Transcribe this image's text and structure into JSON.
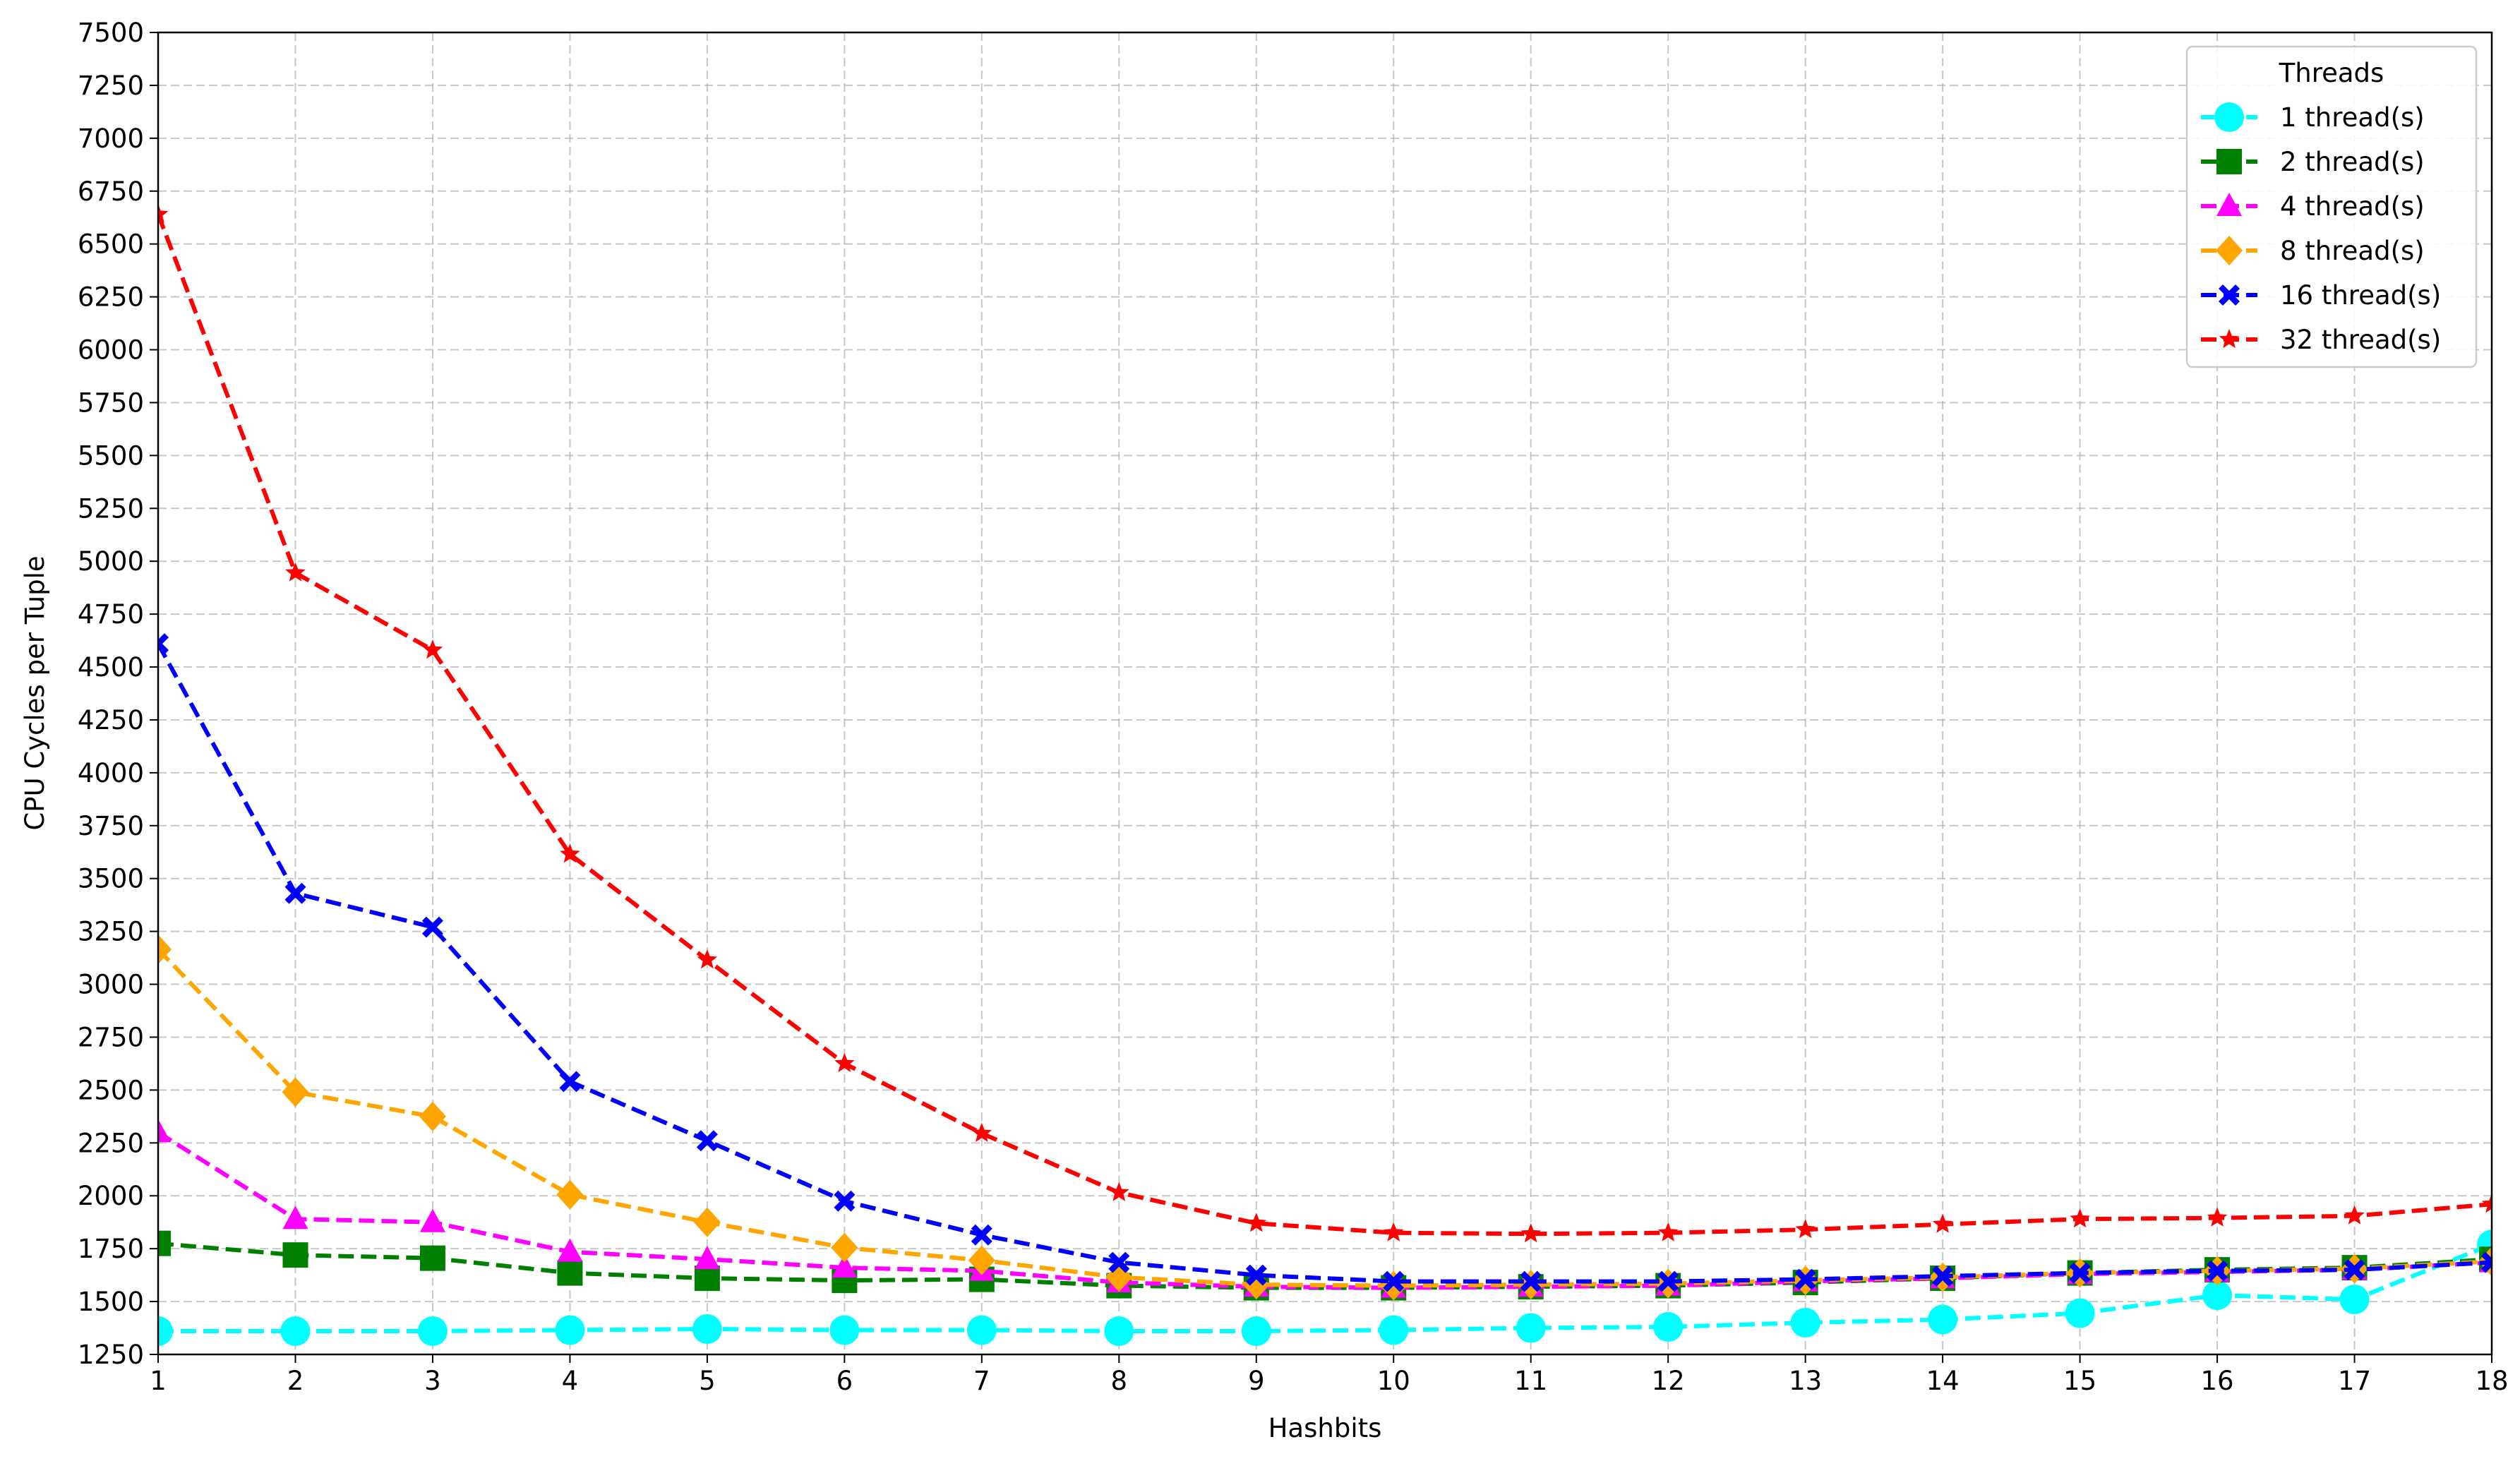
{
  "chart_data": {
    "type": "line",
    "xlabel": "Hashbits",
    "ylabel": "CPU Cycles per Tuple",
    "xlim": [
      1,
      18
    ],
    "ylim": [
      1250,
      7500
    ],
    "x": [
      1,
      2,
      3,
      4,
      5,
      6,
      7,
      8,
      9,
      10,
      11,
      12,
      13,
      14,
      15,
      16,
      17,
      18
    ],
    "x_ticks": [
      1,
      2,
      3,
      4,
      5,
      6,
      7,
      8,
      9,
      10,
      11,
      12,
      13,
      14,
      15,
      16,
      17,
      18
    ],
    "y_ticks": [
      1250,
      1500,
      1750,
      2000,
      2250,
      2500,
      2750,
      3000,
      3250,
      3500,
      3750,
      4000,
      4250,
      4500,
      4750,
      5000,
      5250,
      5500,
      5750,
      6000,
      6250,
      6500,
      6750,
      7000,
      7250,
      7500
    ],
    "grid": true,
    "line_style": "dashed",
    "legend": {
      "title": "Threads",
      "placement": "top-right"
    },
    "series": [
      {
        "name": "1 thread(s)",
        "color": "#00FFFF",
        "marker": "circle",
        "values": [
          1360,
          1360,
          1360,
          1365,
          1370,
          1365,
          1365,
          1360,
          1360,
          1365,
          1375,
          1380,
          1400,
          1415,
          1445,
          1530,
          1510,
          1770
        ]
      },
      {
        "name": "2 thread(s)",
        "color": "#008000",
        "marker": "square",
        "values": [
          1775,
          1720,
          1705,
          1635,
          1610,
          1600,
          1605,
          1575,
          1565,
          1565,
          1570,
          1575,
          1590,
          1610,
          1635,
          1650,
          1660,
          1700
        ]
      },
      {
        "name": "4 thread(s)",
        "color": "#FF00FF",
        "marker": "triangle",
        "values": [
          2300,
          1890,
          1875,
          1735,
          1700,
          1660,
          1645,
          1590,
          1570,
          1565,
          1570,
          1575,
          1595,
          1610,
          1630,
          1640,
          1650,
          1685
        ]
      },
      {
        "name": "8 thread(s)",
        "color": "#FFA500",
        "marker": "diamond",
        "values": [
          3165,
          2490,
          2375,
          2005,
          1875,
          1755,
          1695,
          1615,
          1580,
          1575,
          1580,
          1585,
          1600,
          1615,
          1635,
          1645,
          1655,
          1690
        ]
      },
      {
        "name": "16 thread(s)",
        "color": "#0000FF",
        "marker": "x",
        "values": [
          4610,
          3430,
          3270,
          2540,
          2260,
          1975,
          1815,
          1685,
          1625,
          1595,
          1595,
          1595,
          1605,
          1620,
          1635,
          1645,
          1650,
          1685
        ]
      },
      {
        "name": "32 thread(s)",
        "color": "#FF0000",
        "marker": "star",
        "values": [
          6640,
          4945,
          4580,
          3615,
          3115,
          2625,
          2295,
          2015,
          1870,
          1825,
          1820,
          1825,
          1840,
          1865,
          1890,
          1895,
          1905,
          1960
        ]
      }
    ]
  }
}
